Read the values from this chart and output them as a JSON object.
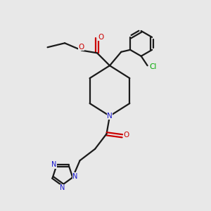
{
  "background_color": "#e8e8e8",
  "bond_color": "#1a1a1a",
  "nitrogen_color": "#1414cc",
  "oxygen_color": "#cc0000",
  "chlorine_color": "#00aa00",
  "line_width": 1.6,
  "fig_width": 3.0,
  "fig_height": 3.0,
  "dpi": 100,
  "xlim": [
    0,
    10
  ],
  "ylim": [
    0,
    10
  ]
}
